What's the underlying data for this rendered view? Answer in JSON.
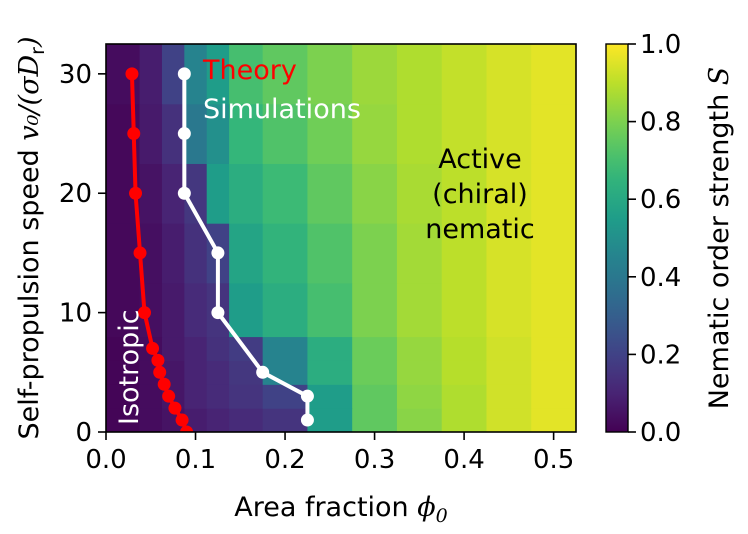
{
  "chart_data": {
    "type": "heatmap",
    "xlabel": {
      "text": "Area fraction ",
      "math": "ϕ",
      "sub": "0"
    },
    "ylabel": {
      "text": "Self-propulsion speed ",
      "math": "v₀/(σD",
      "sub": "r",
      "tail": ")"
    },
    "colorbar_label": {
      "text": "Nematic order strength ",
      "math": "S"
    },
    "xlim": [
      0.0,
      0.525
    ],
    "ylim": [
      0,
      32.5
    ],
    "x_ticks": [
      {
        "v": 0.0,
        "label": "0.0"
      },
      {
        "v": 0.1,
        "label": "0.1"
      },
      {
        "v": 0.2,
        "label": "0.2"
      },
      {
        "v": 0.3,
        "label": "0.3"
      },
      {
        "v": 0.4,
        "label": "0.4"
      },
      {
        "v": 0.5,
        "label": "0.5"
      }
    ],
    "y_ticks": [
      {
        "v": 0,
        "label": "0"
      },
      {
        "v": 10,
        "label": "10"
      },
      {
        "v": 20,
        "label": "20"
      },
      {
        "v": 30,
        "label": "30"
      }
    ],
    "colorbar_ticks": [
      {
        "v": 0.0,
        "label": "0.0"
      },
      {
        "v": 0.2,
        "label": "0.2"
      },
      {
        "v": 0.4,
        "label": "0.4"
      },
      {
        "v": 0.6,
        "label": "0.6"
      },
      {
        "v": 0.8,
        "label": "0.8"
      },
      {
        "v": 1.0,
        "label": "1.0"
      }
    ],
    "colorbar_range": [
      0.0,
      1.0
    ],
    "colormap": "viridis",
    "heatmap": {
      "x_edges": [
        0.0,
        0.0375,
        0.0625,
        0.0875,
        0.1125,
        0.1375,
        0.175,
        0.225,
        0.275,
        0.325,
        0.375,
        0.425,
        0.475,
        0.525
      ],
      "y_edges": [
        0,
        2,
        4,
        6,
        8,
        12.5,
        17.5,
        22.5,
        27.5,
        32.5
      ],
      "values": [
        [
          0.01,
          0.03,
          0.05,
          0.08,
          0.1,
          0.12,
          0.15,
          0.55,
          0.75,
          0.82,
          0.88,
          0.93,
          0.96
        ],
        [
          0.01,
          0.03,
          0.06,
          0.1,
          0.12,
          0.15,
          0.2,
          0.55,
          0.75,
          0.83,
          0.88,
          0.93,
          0.96
        ],
        [
          0.01,
          0.03,
          0.06,
          0.1,
          0.12,
          0.16,
          0.45,
          0.62,
          0.77,
          0.84,
          0.89,
          0.93,
          0.96
        ],
        [
          0.01,
          0.03,
          0.07,
          0.1,
          0.14,
          0.18,
          0.45,
          0.62,
          0.77,
          0.84,
          0.89,
          0.93,
          0.96
        ],
        [
          0.02,
          0.04,
          0.07,
          0.12,
          0.15,
          0.55,
          0.62,
          0.7,
          0.8,
          0.86,
          0.9,
          0.94,
          0.96
        ],
        [
          0.02,
          0.04,
          0.08,
          0.14,
          0.2,
          0.58,
          0.65,
          0.72,
          0.8,
          0.86,
          0.9,
          0.94,
          0.96
        ],
        [
          0.02,
          0.05,
          0.1,
          0.16,
          0.55,
          0.62,
          0.68,
          0.75,
          0.82,
          0.87,
          0.9,
          0.94,
          0.96
        ],
        [
          0.02,
          0.07,
          0.14,
          0.4,
          0.5,
          0.66,
          0.72,
          0.78,
          0.84,
          0.88,
          0.91,
          0.94,
          0.96
        ],
        [
          0.03,
          0.08,
          0.2,
          0.45,
          0.55,
          0.7,
          0.75,
          0.8,
          0.85,
          0.88,
          0.91,
          0.94,
          0.96
        ]
      ]
    },
    "series": [
      {
        "name": "Theory",
        "color": "#ff0000",
        "x": [
          0.09,
          0.085,
          0.077,
          0.07,
          0.065,
          0.06,
          0.058,
          0.052,
          0.043,
          0.038,
          0.033,
          0.031,
          0.029
        ],
        "y": [
          0,
          1,
          2,
          3,
          4,
          5,
          6,
          7,
          10,
          15,
          20,
          25,
          30
        ]
      },
      {
        "name": "Simulations",
        "color": "#ffffff",
        "x": [
          0.225,
          0.225,
          0.175,
          0.125,
          0.125,
          0.0875,
          0.0875,
          0.0875
        ],
        "y": [
          1,
          3,
          5,
          10,
          15,
          20,
          25,
          30
        ]
      }
    ],
    "annotations": {
      "isotropic": "Isotropic",
      "nematic": [
        "Active",
        "(chiral)",
        "nematic"
      ]
    }
  }
}
